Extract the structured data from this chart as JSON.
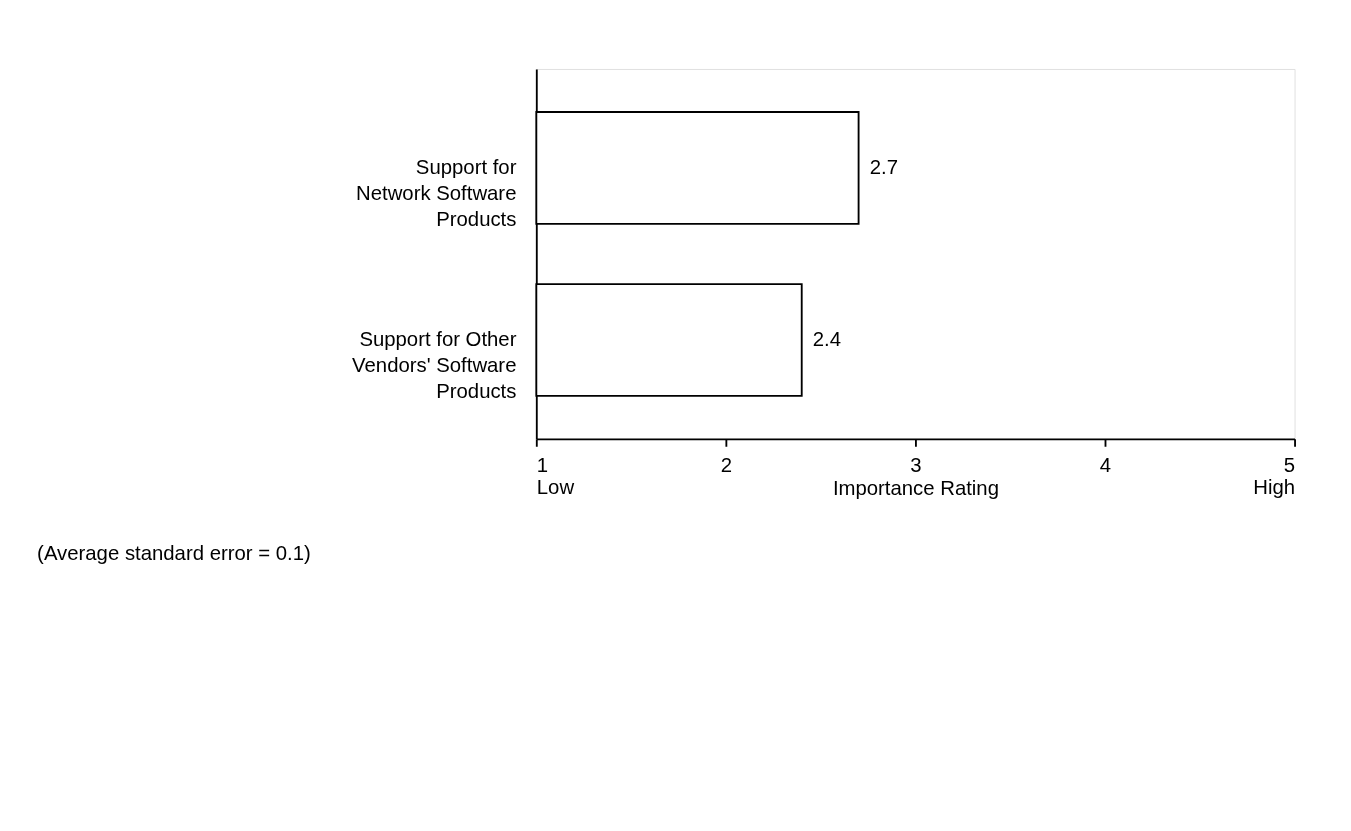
{
  "chart_data": {
    "type": "bar",
    "orientation": "horizontal",
    "categories": [
      "Support for\nNetwork Software\nProducts",
      "Support for Other\nVendors' Software\nProducts"
    ],
    "values": [
      2.7,
      2.4
    ],
    "color": "#ffffff",
    "xlim": [
      1,
      5
    ],
    "xticks": [
      {
        "value": 1,
        "label": "1\nLow"
      },
      2,
      3,
      4,
      {
        "value": 5,
        "label": "5\nHigh"
      }
    ],
    "xlabel": "Importance Rating",
    "data_labels": true,
    "grid": false,
    "annotations": [
      "(Average standard error = 0.1)"
    ]
  }
}
